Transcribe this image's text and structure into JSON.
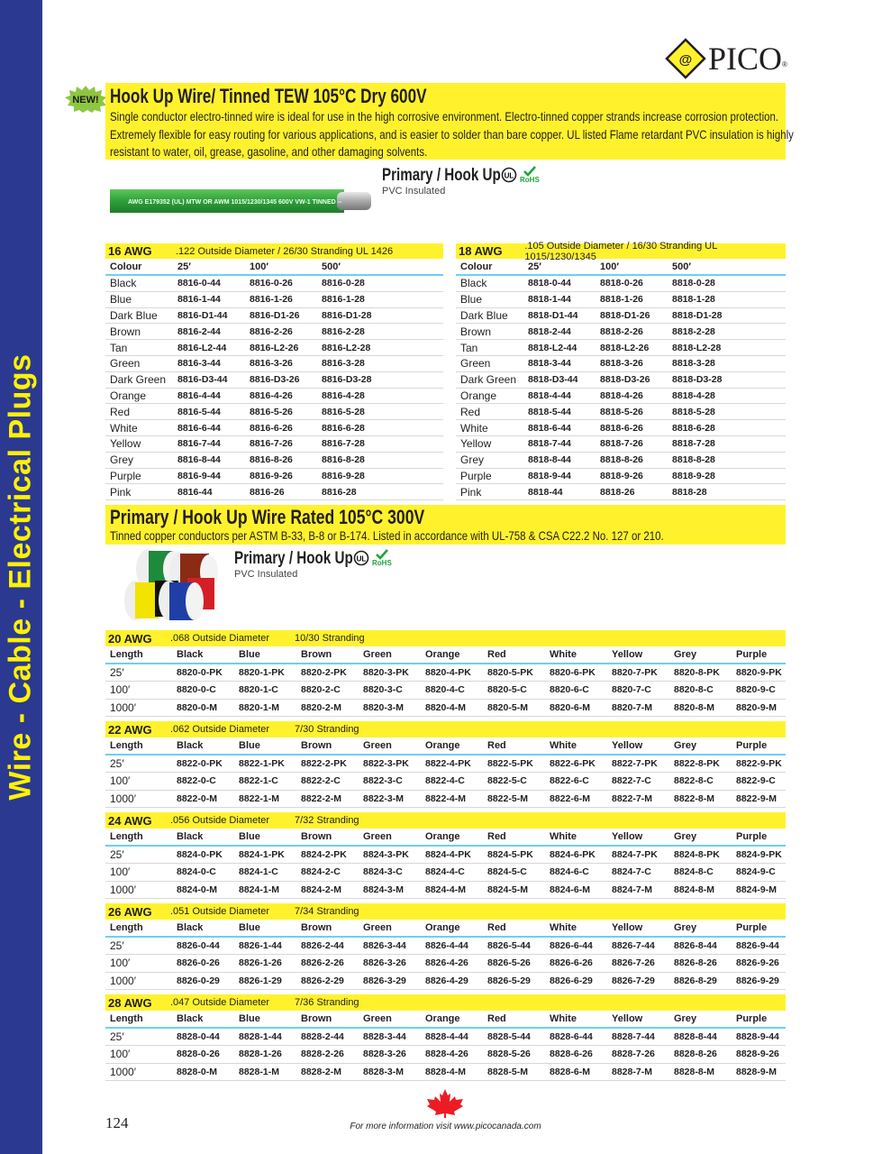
{
  "sidebar": {
    "label": "Wire - Cable - Electrical Plugs",
    "color": "#2b3990",
    "text_color": "#fff200"
  },
  "logo": {
    "text": "PICO",
    "reg": "®"
  },
  "badge": {
    "text": "NEW!"
  },
  "section1": {
    "title": "Hook Up Wire/ Tinned TEW 105°C Dry  600V",
    "description": [
      "Single conductor electro-tinned wire is ideal for use in the high corrosive environment. Electro-tinned  copper strands increase corrosion protection.",
      "Extremely flexible for easy routing for various applications, and is easier to solder than bare copper. UL listed Flame retardant PVC insulation is highly",
      "resistant to water, oil, grease, gasoline, and other damaging solvents."
    ],
    "product_title": "Primary / Hook Up",
    "product_sub": "PVC Insulated",
    "rohs": "RoHS",
    "ul": "UL",
    "wire_print": "AWG E179352 (UL) MTW OR AWM 1015/1230/1345 600V VW-1 TINNED --",
    "tables": [
      {
        "gauge": "16 AWG",
        "spec": ".122 Outside Diameter / 26/30 Stranding   UL 1426",
        "headers": [
          "Colour",
          "25′",
          "100′",
          "500′"
        ],
        "rows": [
          [
            "Black",
            "8816-0-44",
            "8816-0-26",
            "8816-0-28"
          ],
          [
            "Blue",
            "8816-1-44",
            "8816-1-26",
            "8816-1-28"
          ],
          [
            "Dark Blue",
            "8816-D1-44",
            "8816-D1-26",
            "8816-D1-28"
          ],
          [
            "Brown",
            "8816-2-44",
            "8816-2-26",
            "8816-2-28"
          ],
          [
            "Tan",
            "8816-L2-44",
            "8816-L2-26",
            "8816-L2-28"
          ],
          [
            "Green",
            "8816-3-44",
            "8816-3-26",
            "8816-3-28"
          ],
          [
            "Dark Green",
            "8816-D3-44",
            "8816-D3-26",
            "8816-D3-28"
          ],
          [
            "Orange",
            "8816-4-44",
            "8816-4-26",
            "8816-4-28"
          ],
          [
            "Red",
            "8816-5-44",
            "8816-5-26",
            "8816-5-28"
          ],
          [
            "White",
            "8816-6-44",
            "8816-6-26",
            "8816-6-28"
          ],
          [
            "Yellow",
            "8816-7-44",
            "8816-7-26",
            "8816-7-28"
          ],
          [
            "Grey",
            "8816-8-44",
            "8816-8-26",
            "8816-8-28"
          ],
          [
            "Purple",
            "8816-9-44",
            "8816-9-26",
            "8816-9-28"
          ],
          [
            "Pink",
            "8816-44",
            "8816-26",
            "8816-28"
          ]
        ]
      },
      {
        "gauge": "18 AWG",
        "spec": ".105 Outside Diameter / 16/30 Stranding   UL 1015/1230/1345",
        "headers": [
          "Colour",
          "25′",
          "100′",
          "500′"
        ],
        "rows": [
          [
            "Black",
            "8818-0-44",
            "8818-0-26",
            "8818-0-28"
          ],
          [
            "Blue",
            "8818-1-44",
            "8818-1-26",
            "8818-1-28"
          ],
          [
            "Dark Blue",
            "8818-D1-44",
            "8818-D1-26",
            "8818-D1-28"
          ],
          [
            "Brown",
            "8818-2-44",
            "8818-2-26",
            "8818-2-28"
          ],
          [
            "Tan",
            "8818-L2-44",
            "8818-L2-26",
            "8818-L2-28"
          ],
          [
            "Green",
            "8818-3-44",
            "8818-3-26",
            "8818-3-28"
          ],
          [
            "Dark Green",
            "8818-D3-44",
            "8818-D3-26",
            "8818-D3-28"
          ],
          [
            "Orange",
            "8818-4-44",
            "8818-4-26",
            "8818-4-28"
          ],
          [
            "Red",
            "8818-5-44",
            "8818-5-26",
            "8818-5-28"
          ],
          [
            "White",
            "8818-6-44",
            "8818-6-26",
            "8818-6-28"
          ],
          [
            "Yellow",
            "8818-7-44",
            "8818-7-26",
            "8818-7-28"
          ],
          [
            "Grey",
            "8818-8-44",
            "8818-8-26",
            "8818-8-28"
          ],
          [
            "Purple",
            "8818-9-44",
            "8818-9-26",
            "8818-9-28"
          ],
          [
            "Pink",
            "8818-44",
            "8818-26",
            "8818-28"
          ]
        ]
      }
    ]
  },
  "section2": {
    "title": "Primary / Hook Up Wire Rated 105°C 300V",
    "description": "Tinned copper conductors per ASTM B-33, B-8 or B-174. Listed in accordance with UL-758 & CSA C22.2 No. 127 or 210.",
    "product_title": "Primary / Hook Up",
    "product_sub": "PVC Insulated",
    "rohs": "RoHS",
    "ul": "UL",
    "headers": [
      "Length",
      "Black",
      "Blue",
      "Brown",
      "Green",
      "Orange",
      "Red",
      "White",
      "Yellow",
      "Grey",
      "Purple"
    ],
    "tables": [
      {
        "gauge": "20 AWG",
        "od": ".068 Outside Diameter",
        "stranding": "10/30 Stranding",
        "rows": [
          [
            "25′",
            "8820-0-PK",
            "8820-1-PK",
            "8820-2-PK",
            "8820-3-PK",
            "8820-4-PK",
            "8820-5-PK",
            "8820-6-PK",
            "8820-7-PK",
            "8820-8-PK",
            "8820-9-PK"
          ],
          [
            "100′",
            "8820-0-C",
            "8820-1-C",
            "8820-2-C",
            "8820-3-C",
            "8820-4-C",
            "8820-5-C",
            "8820-6-C",
            "8820-7-C",
            "8820-8-C",
            "8820-9-C"
          ],
          [
            "1000′",
            "8820-0-M",
            "8820-1-M",
            "8820-2-M",
            "8820-3-M",
            "8820-4-M",
            "8820-5-M",
            "8820-6-M",
            "8820-7-M",
            "8820-8-M",
            "8820-9-M"
          ]
        ]
      },
      {
        "gauge": "22 AWG",
        "od": ".062 Outside Diameter",
        "stranding": "7/30 Stranding",
        "rows": [
          [
            "25′",
            "8822-0-PK",
            "8822-1-PK",
            "8822-2-PK",
            "8822-3-PK",
            "8822-4-PK",
            "8822-5-PK",
            "8822-6-PK",
            "8822-7-PK",
            "8822-8-PK",
            "8822-9-PK"
          ],
          [
            "100′",
            "8822-0-C",
            "8822-1-C",
            "8822-2-C",
            "8822-3-C",
            "8822-4-C",
            "8822-5-C",
            "8822-6-C",
            "8822-7-C",
            "8822-8-C",
            "8822-9-C"
          ],
          [
            "1000′",
            "8822-0-M",
            "8822-1-M",
            "8822-2-M",
            "8822-3-M",
            "8822-4-M",
            "8822-5-M",
            "8822-6-M",
            "8822-7-M",
            "8822-8-M",
            "8822-9-M"
          ]
        ]
      },
      {
        "gauge": "24 AWG",
        "od": ".056 Outside Diameter",
        "stranding": "7/32 Stranding",
        "rows": [
          [
            "25′",
            "8824-0-PK",
            "8824-1-PK",
            "8824-2-PK",
            "8824-3-PK",
            "8824-4-PK",
            "8824-5-PK",
            "8824-6-PK",
            "8824-7-PK",
            "8824-8-PK",
            "8824-9-PK"
          ],
          [
            "100′",
            "8824-0-C",
            "8824-1-C",
            "8824-2-C",
            "8824-3-C",
            "8824-4-C",
            "8824-5-C",
            "8824-6-C",
            "8824-7-C",
            "8824-8-C",
            "8824-9-C"
          ],
          [
            "1000′",
            "8824-0-M",
            "8824-1-M",
            "8824-2-M",
            "8824-3-M",
            "8824-4-M",
            "8824-5-M",
            "8824-6-M",
            "8824-7-M",
            "8824-8-M",
            "8824-9-M"
          ]
        ]
      },
      {
        "gauge": "26 AWG",
        "od": ".051 Outside Diameter",
        "stranding": "7/34 Stranding",
        "rows": [
          [
            "25′",
            "8826-0-44",
            "8826-1-44",
            "8826-2-44",
            "8826-3-44",
            "8826-4-44",
            "8826-5-44",
            "8826-6-44",
            "8826-7-44",
            "8826-8-44",
            "8826-9-44"
          ],
          [
            "100′",
            "8826-0-26",
            "8826-1-26",
            "8826-2-26",
            "8826-3-26",
            "8826-4-26",
            "8826-5-26",
            "8826-6-26",
            "8826-7-26",
            "8826-8-26",
            "8826-9-26"
          ],
          [
            "1000′",
            "8826-0-29",
            "8826-1-29",
            "8826-2-29",
            "8826-3-29",
            "8826-4-29",
            "8826-5-29",
            "8826-6-29",
            "8826-7-29",
            "8826-8-29",
            "8826-9-29"
          ]
        ]
      },
      {
        "gauge": "28 AWG",
        "od": ".047 Outside Diameter",
        "stranding": "7/36 Stranding",
        "rows": [
          [
            "25′",
            "8828-0-44",
            "8828-1-44",
            "8828-2-44",
            "8828-3-44",
            "8828-4-44",
            "8828-5-44",
            "8828-6-44",
            "8828-7-44",
            "8828-8-44",
            "8828-9-44"
          ],
          [
            "100′",
            "8828-0-26",
            "8828-1-26",
            "8828-2-26",
            "8828-3-26",
            "8828-4-26",
            "8828-5-26",
            "8828-6-26",
            "8828-7-26",
            "8828-8-26",
            "8828-9-26"
          ],
          [
            "1000′",
            "8828-0-M",
            "8828-1-M",
            "8828-2-M",
            "8828-3-M",
            "8828-4-M",
            "8828-5-M",
            "8828-6-M",
            "8828-7-M",
            "8828-8-M",
            "8828-9-M"
          ]
        ]
      }
    ]
  },
  "footer": {
    "page_number": "124",
    "text": "For more information visit www.picocanada.com"
  },
  "colors": {
    "highlight": "#fff22d",
    "rule": "#6dcff6",
    "leaf": "#ed1c24"
  }
}
